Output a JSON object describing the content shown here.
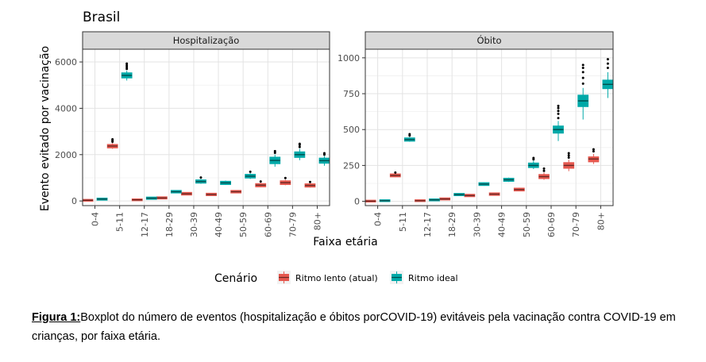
{
  "chart_data": {
    "type": "boxplot",
    "title": "Brasil",
    "xlabel": "Faixa etária",
    "ylabel": "Evento evitado por vacinação",
    "categories": [
      "0-4",
      "5-11",
      "12-17",
      "18-29",
      "30-39",
      "40-49",
      "50-59",
      "60-69",
      "70-79",
      "80+"
    ],
    "legend": {
      "title": "Cenário",
      "position": "bottom",
      "entries": [
        {
          "name": "Ritmo lento (atual)",
          "color": "#e5584f"
        },
        {
          "name": "Ritmo ideal",
          "color": "#00a9a8"
        }
      ]
    },
    "panels": [
      {
        "title": "Hospitalização",
        "ylim": [
          -200,
          6550
        ],
        "yticks": [
          0,
          2000,
          4000,
          6000
        ],
        "series": [
          {
            "name": "Ritmo lento (atual)",
            "values": [
              {
                "median": 30,
                "q1": 20,
                "q3": 40,
                "whisker_low": 10,
                "whisker_high": 50,
                "outliers": []
              },
              {
                "median": 2370,
                "q1": 2320,
                "q3": 2410,
                "whisker_low": 2250,
                "whisker_high": 2500,
                "outliers": [
                  2560,
                  2610,
                  2660
                ]
              },
              {
                "median": 50,
                "q1": 40,
                "q3": 60,
                "whisker_low": 25,
                "whisker_high": 75,
                "outliers": []
              },
              {
                "median": 130,
                "q1": 115,
                "q3": 150,
                "whisker_low": 95,
                "whisker_high": 170,
                "outliers": []
              },
              {
                "median": 310,
                "q1": 285,
                "q3": 340,
                "whisker_low": 250,
                "whisker_high": 380,
                "outliers": []
              },
              {
                "median": 280,
                "q1": 260,
                "q3": 305,
                "whisker_low": 230,
                "whisker_high": 340,
                "outliers": []
              },
              {
                "median": 400,
                "q1": 375,
                "q3": 425,
                "whisker_low": 340,
                "whisker_high": 460,
                "outliers": []
              },
              {
                "median": 680,
                "q1": 640,
                "q3": 720,
                "whisker_low": 590,
                "whisker_high": 780,
                "outliers": [
                  840
                ]
              },
              {
                "median": 790,
                "q1": 740,
                "q3": 840,
                "whisker_low": 680,
                "whisker_high": 920,
                "outliers": [
                  990
                ]
              },
              {
                "median": 670,
                "q1": 630,
                "q3": 710,
                "whisker_low": 580,
                "whisker_high": 760,
                "outliers": [
                  820
                ]
              }
            ]
          },
          {
            "name": "Ritmo ideal",
            "values": [
              {
                "median": 80,
                "q1": 65,
                "q3": 95,
                "whisker_low": 45,
                "whisker_high": 115,
                "outliers": []
              },
              {
                "median": 5420,
                "q1": 5340,
                "q3": 5500,
                "whisker_low": 5200,
                "whisker_high": 5620,
                "outliers": [
                  5700,
                  5780,
                  5850,
                  5930
                ]
              },
              {
                "median": 120,
                "q1": 100,
                "q3": 140,
                "whisker_low": 75,
                "whisker_high": 165,
                "outliers": []
              },
              {
                "median": 400,
                "q1": 375,
                "q3": 425,
                "whisker_low": 340,
                "whisker_high": 460,
                "outliers": []
              },
              {
                "median": 840,
                "q1": 800,
                "q3": 880,
                "whisker_low": 740,
                "whisker_high": 950,
                "outliers": [
                  1010
                ]
              },
              {
                "median": 780,
                "q1": 740,
                "q3": 820,
                "whisker_low": 690,
                "whisker_high": 880,
                "outliers": []
              },
              {
                "median": 1070,
                "q1": 1020,
                "q3": 1120,
                "whisker_low": 950,
                "whisker_high": 1200,
                "outliers": [
                  1260
                ]
              },
              {
                "median": 1750,
                "q1": 1640,
                "q3": 1860,
                "whisker_low": 1480,
                "whisker_high": 2000,
                "outliers": [
                  2080,
                  2150
                ]
              },
              {
                "median": 2000,
                "q1": 1910,
                "q3": 2090,
                "whisker_low": 1760,
                "whisker_high": 2250,
                "outliers": [
                  2330,
                  2420,
                  2470
                ]
              },
              {
                "median": 1740,
                "q1": 1660,
                "q3": 1820,
                "whisker_low": 1520,
                "whisker_high": 1940,
                "outliers": [
                  2000,
                  2060
                ]
              }
            ]
          }
        ]
      },
      {
        "title": "Óbito",
        "ylim": [
          -30,
          1060
        ],
        "yticks": [
          0,
          250,
          500,
          750,
          1000
        ],
        "series": [
          {
            "name": "Ritmo lento (atual)",
            "values": [
              {
                "median": 1,
                "q1": 0,
                "q3": 3,
                "whisker_low": 0,
                "whisker_high": 5,
                "outliers": []
              },
              {
                "median": 180,
                "q1": 175,
                "q3": 186,
                "whisker_low": 168,
                "whisker_high": 194,
                "outliers": [
                  200
                ]
              },
              {
                "median": 4,
                "q1": 3,
                "q3": 6,
                "whisker_low": 1,
                "whisker_high": 9,
                "outliers": []
              },
              {
                "median": 16,
                "q1": 14,
                "q3": 19,
                "whisker_low": 11,
                "whisker_high": 22,
                "outliers": []
              },
              {
                "median": 40,
                "q1": 37,
                "q3": 44,
                "whisker_low": 33,
                "whisker_high": 49,
                "outliers": []
              },
              {
                "median": 50,
                "q1": 46,
                "q3": 54,
                "whisker_low": 41,
                "whisker_high": 59,
                "outliers": []
              },
              {
                "median": 82,
                "q1": 77,
                "q3": 87,
                "whisker_low": 70,
                "whisker_high": 95,
                "outliers": []
              },
              {
                "median": 172,
                "q1": 163,
                "q3": 182,
                "whisker_low": 150,
                "whisker_high": 200,
                "outliers": [
                  212,
                  228
                ]
              },
              {
                "median": 250,
                "q1": 235,
                "q3": 265,
                "whisker_low": 210,
                "whisker_high": 290,
                "outliers": [
                  305,
                  320,
                  335
                ]
              },
              {
                "median": 295,
                "q1": 280,
                "q3": 305,
                "whisker_low": 260,
                "whisker_high": 330,
                "outliers": [
                  348,
                  362
                ]
              }
            ]
          },
          {
            "name": "Ritmo ideal",
            "values": [
              {
                "median": 4,
                "q1": 3,
                "q3": 6,
                "whisker_low": 1,
                "whisker_high": 8,
                "outliers": []
              },
              {
                "median": 430,
                "q1": 424,
                "q3": 437,
                "whisker_low": 415,
                "whisker_high": 448,
                "outliers": [
                  458,
                  468
                ]
              },
              {
                "median": 10,
                "q1": 8,
                "q3": 12,
                "whisker_low": 6,
                "whisker_high": 15,
                "outliers": []
              },
              {
                "median": 47,
                "q1": 44,
                "q3": 50,
                "whisker_low": 40,
                "whisker_high": 54,
                "outliers": []
              },
              {
                "median": 120,
                "q1": 115,
                "q3": 125,
                "whisker_low": 108,
                "whisker_high": 132,
                "outliers": []
              },
              {
                "median": 150,
                "q1": 144,
                "q3": 156,
                "whisker_low": 135,
                "whisker_high": 165,
                "outliers": []
              },
              {
                "median": 250,
                "q1": 240,
                "q3": 262,
                "whisker_low": 225,
                "whisker_high": 282,
                "outliers": [
                  292,
                  302
                ]
              },
              {
                "median": 500,
                "q1": 480,
                "q3": 520,
                "whisker_low": 420,
                "whisker_high": 560,
                "outliers": [
                  580,
                  610,
                  630,
                  650,
                  665
                ]
              },
              {
                "median": 700,
                "q1": 665,
                "q3": 735,
                "whisker_low": 570,
                "whisker_high": 790,
                "outliers": [
                  820,
                  860,
                  900,
                  930,
                  950
                ]
              },
              {
                "median": 815,
                "q1": 790,
                "q3": 840,
                "whisker_low": 720,
                "whisker_high": 900,
                "outliers": [
                  930,
                  960,
                  990
                ]
              }
            ]
          }
        ]
      }
    ]
  },
  "caption": {
    "label": "Figura 1:",
    "text": "Boxplot do número de eventos (hospitalização e óbitos porCOVID-19) evitáveis pela vacinação contra COVID-19 em crianças, por faixa etária."
  }
}
